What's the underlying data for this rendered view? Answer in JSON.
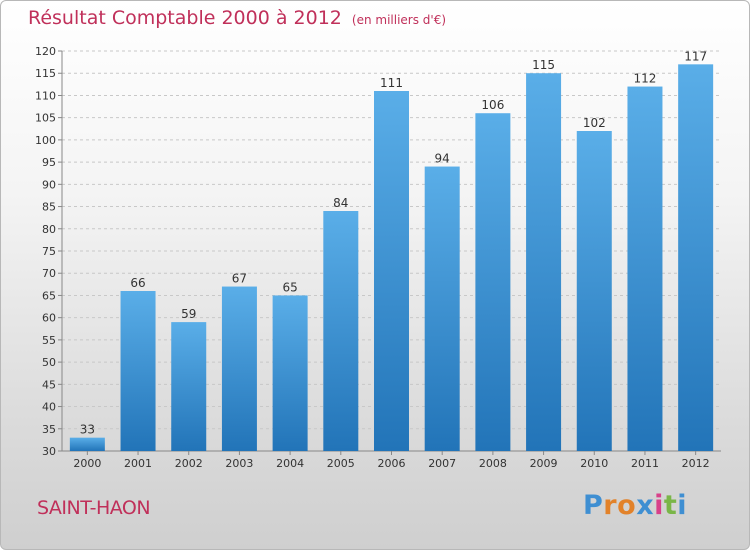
{
  "title": "Résultat Comptable 2000 à 2012",
  "unit": "(en milliers d'€)",
  "city": "SAINT-HAON",
  "logo": {
    "letters": [
      "P",
      "r",
      "o",
      "x",
      "i",
      "t",
      "i"
    ]
  },
  "colors": {
    "bar": "#2f86cc",
    "title": "#c0305a"
  },
  "chart_data": {
    "type": "bar",
    "title": "Résultat Comptable 2000 à 2012",
    "ylabel": "",
    "xlabel": "",
    "ylim": [
      30,
      120
    ],
    "yticks": [
      30,
      35,
      40,
      45,
      50,
      55,
      60,
      65,
      70,
      75,
      80,
      85,
      90,
      95,
      100,
      105,
      110,
      115,
      120
    ],
    "grid": true,
    "categories": [
      "2000",
      "2001",
      "2002",
      "2003",
      "2004",
      "2005",
      "2006",
      "2007",
      "2008",
      "2009",
      "2010",
      "2011",
      "2012"
    ],
    "values": [
      33,
      66,
      59,
      67,
      65,
      84,
      111,
      94,
      106,
      115,
      102,
      112,
      117
    ]
  }
}
